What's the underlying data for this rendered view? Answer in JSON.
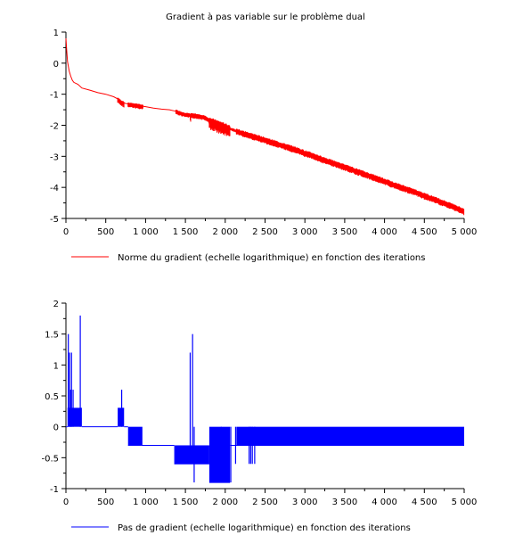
{
  "window_title": "Gradient à pas variable sur le problème dual",
  "chart_data": [
    {
      "type": "line",
      "title": "Gradient à pas variable sur le problème dual",
      "xlabel": "",
      "ylabel": "",
      "xlim": [
        0,
        5000
      ],
      "ylim": [
        -5,
        1
      ],
      "xticks": [
        0,
        500,
        1000,
        1500,
        2000,
        2500,
        3000,
        3500,
        4000,
        4500,
        5000
      ],
      "xtick_labels": [
        "0",
        "500",
        "1 000",
        "1 500",
        "2 000",
        "2 500",
        "3 000",
        "3 500",
        "4 000",
        "4 500",
        "5 000"
      ],
      "yticks": [
        1,
        0,
        -1,
        -2,
        -3,
        -4,
        -5
      ],
      "ytick_labels": [
        "1",
        "0",
        "-1",
        "-2",
        "-3",
        "-4",
        "-5"
      ],
      "grid": false,
      "legend_position": "below-left",
      "series": [
        {
          "name": "Norme du gradient (echelle logarithmique) en fonction des iterations",
          "color": "#ff0000",
          "x": [
            0,
            10,
            20,
            40,
            60,
            80,
            100,
            150,
            200,
            300,
            400,
            500,
            600,
            650,
            700,
            750,
            800,
            900,
            950,
            1000,
            1100,
            1200,
            1300,
            1380,
            1450,
            1550,
            1650,
            1750,
            1800,
            1900,
            2000,
            2100,
            2200,
            2300,
            2400,
            2500,
            2600,
            2700,
            2800,
            2900,
            3000,
            3100,
            3200,
            3300,
            3400,
            3500,
            3600,
            3700,
            3800,
            3900,
            4000,
            4100,
            4200,
            4300,
            4400,
            4500,
            4600,
            4700,
            4800,
            4900,
            5000
          ],
          "y": [
            0.8,
            0.4,
            0.05,
            -0.25,
            -0.42,
            -0.55,
            -0.62,
            -0.68,
            -0.8,
            -0.87,
            -0.95,
            -1.0,
            -1.08,
            -1.15,
            -1.25,
            -1.3,
            -1.32,
            -1.35,
            -1.38,
            -1.4,
            -1.45,
            -1.48,
            -1.5,
            -1.55,
            -1.62,
            -1.67,
            -1.7,
            -1.75,
            -1.85,
            -1.95,
            -2.05,
            -2.15,
            -2.25,
            -2.32,
            -2.4,
            -2.48,
            -2.56,
            -2.64,
            -2.72,
            -2.8,
            -2.9,
            -2.98,
            -3.08,
            -3.17,
            -3.26,
            -3.35,
            -3.44,
            -3.53,
            -3.62,
            -3.71,
            -3.8,
            -3.9,
            -3.99,
            -4.08,
            -4.17,
            -4.27,
            -4.36,
            -4.46,
            -4.56,
            -4.66,
            -4.78
          ],
          "oscillation_band": [
            {
              "x_from": 650,
              "x_to": 730,
              "low_offset": 0.15,
              "high_offset": 0.05
            },
            {
              "x_from": 780,
              "x_to": 970,
              "low_offset": 0.12,
              "high_offset": 0.05
            },
            {
              "x_from": 1380,
              "x_to": 1560,
              "low_offset": 0.1,
              "high_offset": 0.06
            },
            {
              "x_from": 1560,
              "x_to": 1570,
              "low_offset": 0.27,
              "high_offset": 0.05
            },
            {
              "x_from": 1570,
              "x_to": 1800,
              "low_offset": 0.1,
              "high_offset": 0.07
            },
            {
              "x_from": 1800,
              "x_to": 2060,
              "low_offset": 0.3,
              "high_offset": 0.12
            },
            {
              "x_from": 2060,
              "x_to": 2140,
              "low_offset": 0.05,
              "high_offset": 0.05
            },
            {
              "x_from": 2140,
              "x_to": 5000,
              "low_offset": 0.12,
              "high_offset": 0.1
            }
          ]
        }
      ]
    },
    {
      "type": "line",
      "title": "",
      "xlabel": "",
      "ylabel": "",
      "xlim": [
        0,
        5000
      ],
      "ylim": [
        -1,
        2
      ],
      "xticks": [
        0,
        500,
        1000,
        1500,
        2000,
        2500,
        3000,
        3500,
        4000,
        4500,
        5000
      ],
      "xtick_labels": [
        "0",
        "500",
        "1 000",
        "1 500",
        "2 000",
        "2 500",
        "3 000",
        "3 500",
        "4 000",
        "4 500",
        "5 000"
      ],
      "yticks": [
        2,
        1.5,
        1,
        0.5,
        0,
        -0.5,
        -1
      ],
      "ytick_labels": [
        "2",
        "1.5",
        "1",
        "0.5",
        "0",
        "-0.5",
        "-1"
      ],
      "grid": false,
      "legend_position": "below-left",
      "series": [
        {
          "name": "Pas de gradient (echelle logarithmique) en fonction des iterations",
          "color": "#0000ff",
          "base": [
            {
              "x_from": 0,
              "x_to": 20,
              "y": 0.0
            },
            {
              "x_from": 20,
              "x_to": 200,
              "y": 0.3
            },
            {
              "x_from": 200,
              "x_to": 650,
              "y": 0.0
            },
            {
              "x_from": 650,
              "x_to": 730,
              "y": 0.3
            },
            {
              "x_from": 730,
              "x_to": 780,
              "y": 0.0
            },
            {
              "x_from": 780,
              "x_to": 950,
              "y": -0.3
            },
            {
              "x_from": 950,
              "x_to": 1360,
              "y": -0.3
            },
            {
              "x_from": 1360,
              "x_to": 1800,
              "y": -0.6
            },
            {
              "x_from": 1800,
              "x_to": 2060,
              "y": -0.9
            },
            {
              "x_from": 2060,
              "x_to": 5000,
              "y": -0.3
            }
          ],
          "oscillation_band": [
            {
              "x_from": 20,
              "x_to": 200,
              "low": 0.0,
              "high": 0.3
            },
            {
              "x_from": 650,
              "x_to": 730,
              "low": 0.0,
              "high": 0.3
            },
            {
              "x_from": 780,
              "x_to": 960,
              "low": -0.3,
              "high": 0.0
            },
            {
              "x_from": 1360,
              "x_to": 1800,
              "low": -0.6,
              "high": -0.3
            },
            {
              "x_from": 1800,
              "x_to": 2060,
              "low": -0.9,
              "high": 0.0
            },
            {
              "x_from": 2140,
              "x_to": 5000,
              "low": -0.3,
              "high": 0.0
            }
          ],
          "spikes": [
            {
              "x": 30,
              "low": 0.0,
              "high": 1.5
            },
            {
              "x": 45,
              "low": 0.0,
              "high": 1.2
            },
            {
              "x": 60,
              "low": 0.0,
              "high": 0.6
            },
            {
              "x": 70,
              "low": 0.0,
              "high": 1.2
            },
            {
              "x": 90,
              "low": 0.0,
              "high": 0.6
            },
            {
              "x": 180,
              "low": 0.0,
              "high": 1.8
            },
            {
              "x": 700,
              "low": 0.0,
              "high": 0.6
            },
            {
              "x": 1560,
              "low": -0.3,
              "high": 1.2
            },
            {
              "x": 1590,
              "low": -0.3,
              "high": 1.5
            },
            {
              "x": 1610,
              "low": -0.9,
              "high": 0.0
            },
            {
              "x": 1950,
              "low": -0.9,
              "high": 0.0
            },
            {
              "x": 2070,
              "low": -0.9,
              "high": 0.0
            },
            {
              "x": 2130,
              "low": -0.6,
              "high": 0.0
            },
            {
              "x": 2300,
              "low": -0.6,
              "high": 0.0
            },
            {
              "x": 2320,
              "low": -0.6,
              "high": 0.0
            },
            {
              "x": 2340,
              "low": -0.6,
              "high": 0.0
            },
            {
              "x": 2370,
              "low": -0.6,
              "high": 0.0
            }
          ]
        }
      ]
    }
  ]
}
